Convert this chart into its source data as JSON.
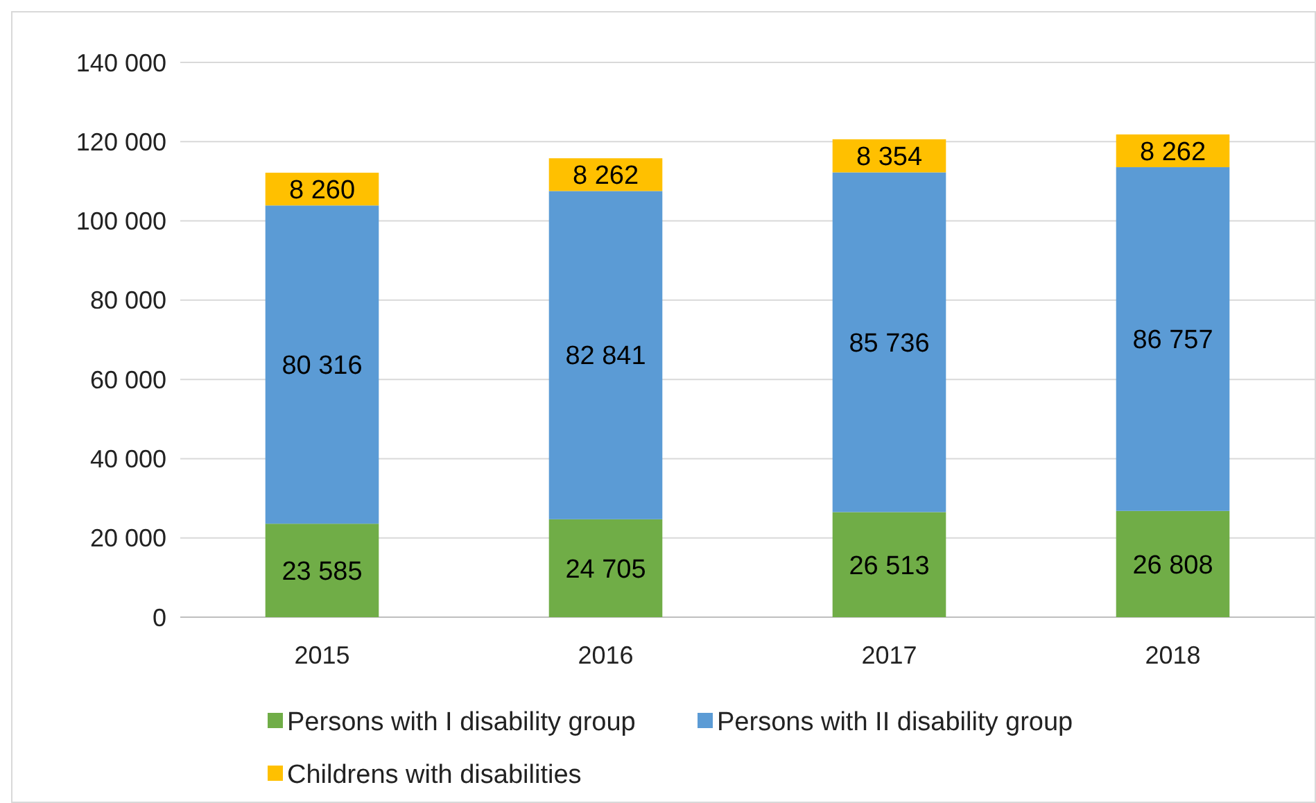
{
  "chart_data": {
    "type": "bar",
    "stacked": true,
    "categories": [
      "2015",
      "2016",
      "2017",
      "2018"
    ],
    "series": [
      {
        "name": "Persons with I disability group",
        "color": "#70ad47",
        "values": [
          23585,
          24705,
          26513,
          26808
        ],
        "value_labels": [
          "23 585",
          "24 705",
          "26 513",
          "26 808"
        ]
      },
      {
        "name": "Persons with II disability group",
        "color": "#5b9bd5",
        "values": [
          80316,
          82841,
          85736,
          86757
        ],
        "value_labels": [
          "80 316",
          "82 841",
          "85 736",
          "86 757"
        ]
      },
      {
        "name": "Childrens with disabilities",
        "color": "#ffc000",
        "values": [
          8260,
          8262,
          8354,
          8262
        ],
        "value_labels": [
          "8 260",
          "8 262",
          "8 354",
          "8 262"
        ]
      }
    ],
    "ylim": [
      0,
      140000
    ],
    "yticks": [
      {
        "value": 0,
        "label": "0"
      },
      {
        "value": 20000,
        "label": "20 000"
      },
      {
        "value": 40000,
        "label": "40 000"
      },
      {
        "value": 60000,
        "label": "60 000"
      },
      {
        "value": 80000,
        "label": "80 000"
      },
      {
        "value": 100000,
        "label": "100 000"
      },
      {
        "value": 120000,
        "label": "120 000"
      },
      {
        "value": 140000,
        "label": "140 000"
      }
    ],
    "grid": "y",
    "legend": "bottom"
  }
}
